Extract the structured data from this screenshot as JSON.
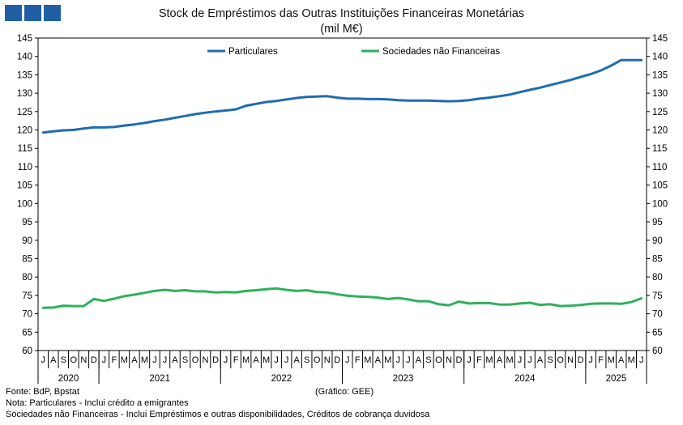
{
  "header": {
    "title": "Stock de Empréstimos das Outras Instituições Financeiras Monetárias",
    "subtitle": "(mil M€)"
  },
  "footer": {
    "source": "Fonte: BdP, Bpstat",
    "note1": "Nota: Particulares - Inclui crédito a emigrantes",
    "note2": "Sociedades não Financeiras - Inclui Empréstimos e outras disponibilidades, Créditos de cobrança duvidosa",
    "credit": "(Gráfico: GEE)"
  },
  "chart_data": {
    "type": "line",
    "title": "Stock de Empréstimos das Outras Instituições Financeiras Monetárias",
    "subtitle": "(mil M€)",
    "ylim": [
      60,
      145
    ],
    "y_ticks": [
      60,
      65,
      70,
      75,
      80,
      85,
      90,
      95,
      100,
      105,
      110,
      115,
      120,
      125,
      130,
      135,
      140,
      145
    ],
    "grid": false,
    "legend": "top-center",
    "month_labels": [
      "J",
      "A",
      "S",
      "O",
      "N",
      "D",
      "J",
      "F",
      "M",
      "A",
      "M",
      "J",
      "J",
      "A",
      "S",
      "O",
      "N",
      "D",
      "J",
      "F",
      "M",
      "A",
      "M",
      "J",
      "J",
      "A",
      "S",
      "O",
      "N",
      "D",
      "J",
      "F",
      "M",
      "A",
      "M",
      "J",
      "J",
      "A",
      "S",
      "O",
      "N",
      "D",
      "J",
      "F",
      "M",
      "A",
      "M",
      "J",
      "J",
      "A",
      "S",
      "O",
      "N",
      "D",
      "J",
      "F",
      "M",
      "A",
      "M",
      "J"
    ],
    "years": [
      {
        "label": "2020",
        "start": 0,
        "end": 5
      },
      {
        "label": "2021",
        "start": 6,
        "end": 17
      },
      {
        "label": "2022",
        "start": 18,
        "end": 29
      },
      {
        "label": "2023",
        "start": 30,
        "end": 41
      },
      {
        "label": "2024",
        "start": 42,
        "end": 53
      },
      {
        "label": "2025",
        "start": 54,
        "end": 59
      }
    ],
    "series": [
      {
        "name": "Particulares",
        "color": "#1f6cb0",
        "values": [
          119.3,
          119.6,
          119.9,
          120.0,
          120.4,
          120.7,
          120.7,
          120.8,
          121.2,
          121.5,
          121.9,
          122.4,
          122.8,
          123.3,
          123.8,
          124.3,
          124.7,
          125.0,
          125.3,
          125.6,
          126.6,
          127.1,
          127.6,
          127.9,
          128.3,
          128.7,
          129.0,
          129.1,
          129.2,
          128.8,
          128.5,
          128.5,
          128.4,
          128.4,
          128.3,
          128.1,
          128.0,
          128.0,
          128.0,
          127.9,
          127.8,
          127.9,
          128.1,
          128.5,
          128.8,
          129.2,
          129.6,
          130.3,
          130.9,
          131.5,
          132.2,
          132.9,
          133.6,
          134.4,
          135.2,
          136.2,
          137.5,
          139.0,
          139.0,
          139.0
        ]
      },
      {
        "name": "Sociedades não Financeiras",
        "color": "#2fb05c",
        "values": [
          71.6,
          71.7,
          72.2,
          72.1,
          72.1,
          74.0,
          73.5,
          74.1,
          74.8,
          75.2,
          75.7,
          76.2,
          76.5,
          76.2,
          76.4,
          76.1,
          76.1,
          75.8,
          75.9,
          75.8,
          76.2,
          76.4,
          76.7,
          76.9,
          76.5,
          76.2,
          76.4,
          75.9,
          75.8,
          75.3,
          74.9,
          74.7,
          74.6,
          74.4,
          74.0,
          74.3,
          73.9,
          73.4,
          73.4,
          72.6,
          72.3,
          73.3,
          72.8,
          72.9,
          72.9,
          72.5,
          72.5,
          72.8,
          73.0,
          72.4,
          72.6,
          72.1,
          72.2,
          72.4,
          72.7,
          72.8,
          72.8,
          72.7,
          73.2,
          74.2
        ]
      }
    ]
  }
}
